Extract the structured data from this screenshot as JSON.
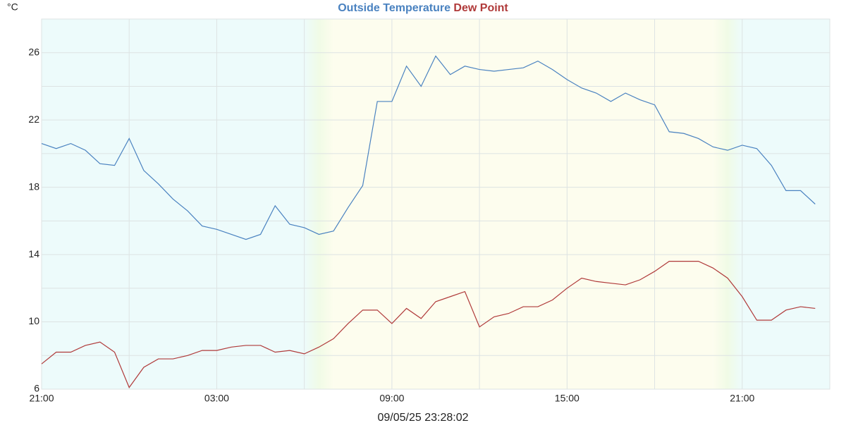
{
  "chart_data": {
    "type": "line",
    "unit_label": "°C",
    "footer": "09/05/25 23:28:02",
    "x": [
      0,
      0.5,
      1,
      1.5,
      2,
      2.5,
      3,
      3.5,
      4,
      4.5,
      5,
      5.5,
      6,
      6.5,
      7,
      7.5,
      8,
      8.5,
      9,
      9.5,
      10,
      10.5,
      11,
      11.5,
      12,
      12.5,
      13,
      13.5,
      14,
      14.5,
      15,
      15.5,
      16,
      16.5,
      17,
      17.5,
      18,
      18.5,
      19,
      19.5,
      20,
      20.5,
      21,
      21.5,
      22,
      22.5,
      23,
      23.5,
      24,
      24.5,
      25,
      25.5,
      26,
      26.5
    ],
    "series": [
      {
        "name": "Outside Temperature",
        "color": "#4a82c0",
        "values": [
          20.6,
          20.3,
          20.6,
          20.2,
          19.4,
          19.3,
          20.9,
          19.0,
          18.2,
          17.3,
          16.6,
          15.7,
          15.5,
          15.2,
          14.9,
          15.2,
          16.9,
          15.8,
          15.6,
          15.2,
          15.4,
          16.8,
          18.1,
          23.1,
          23.1,
          25.2,
          24.0,
          25.8,
          24.7,
          25.2,
          25.0,
          24.9,
          25.0,
          25.1,
          25.5,
          25.0,
          24.4,
          23.9,
          23.6,
          23.1,
          23.6,
          23.2,
          22.9,
          21.3,
          21.2,
          20.9,
          20.4,
          20.2,
          20.5,
          20.3,
          19.3,
          17.8,
          17.8,
          17.0
        ]
      },
      {
        "name": "Dew Point",
        "color": "#b03a3a",
        "values": [
          7.5,
          8.2,
          8.2,
          8.6,
          8.8,
          8.2,
          6.1,
          7.3,
          7.8,
          7.8,
          8.0,
          8.3,
          8.3,
          8.5,
          8.6,
          8.6,
          8.2,
          8.3,
          8.1,
          8.5,
          9.0,
          9.9,
          10.7,
          10.7,
          9.9,
          10.8,
          10.2,
          11.2,
          11.5,
          11.8,
          9.7,
          10.3,
          10.5,
          10.9,
          10.9,
          11.3,
          12.0,
          12.6,
          12.4,
          12.3,
          12.2,
          12.5,
          13.0,
          13.6,
          13.6,
          13.6,
          13.2,
          12.6,
          11.5,
          10.1,
          10.1,
          10.7,
          10.9,
          10.8
        ]
      }
    ],
    "xlim": [
      0,
      27
    ],
    "xticks": [
      {
        "value": 0,
        "label": "21:00"
      },
      {
        "value": 6,
        "label": "03:00"
      },
      {
        "value": 12,
        "label": "09:00"
      },
      {
        "value": 18,
        "label": "15:00"
      },
      {
        "value": 24,
        "label": "21:00"
      }
    ],
    "x_minor_gridlines": [
      3,
      9,
      15,
      21
    ],
    "ylim": [
      6,
      28
    ],
    "yticks": [
      6,
      10,
      14,
      18,
      22,
      26
    ],
    "y_minor_gridlines": [
      8,
      12,
      16,
      20,
      24
    ],
    "grid": true
  }
}
